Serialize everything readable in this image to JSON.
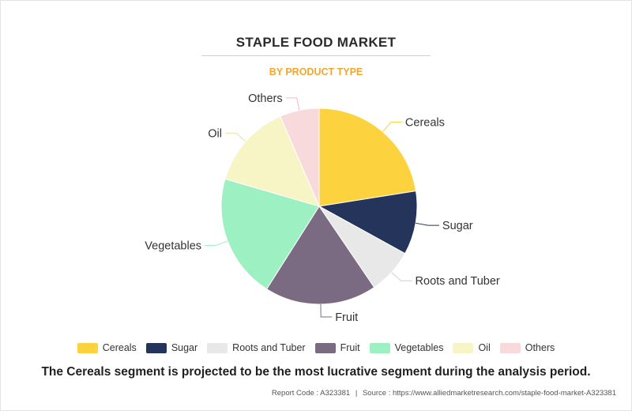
{
  "header": {
    "title": "STAPLE FOOD MARKET",
    "subtitle": "BY PRODUCT TYPE"
  },
  "caption": "The Cereals segment is projected to be the most lucrative segment during the analysis period.",
  "footer": {
    "report_code": "Report Code : A323381",
    "separator": "|",
    "source": "Source : https://www.alliedmarketresearch.com/staple-food-market-A323381"
  },
  "chart_data": {
    "type": "pie",
    "title": "STAPLE FOOD MARKET",
    "subtitle": "BY PRODUCT TYPE",
    "legend_position": "bottom",
    "slices": [
      {
        "label": "Cereals",
        "value": 22.5,
        "color": "#fdd23f"
      },
      {
        "label": "Sugar",
        "value": 10.5,
        "color": "#24345a"
      },
      {
        "label": "Roots and Tuber",
        "value": 7.5,
        "color": "#e8e8e8"
      },
      {
        "label": "Fruit",
        "value": 18.5,
        "color": "#7b6b82"
      },
      {
        "label": "Vegetables",
        "value": 20.5,
        "color": "#9df0c2"
      },
      {
        "label": "Oil",
        "value": 14.0,
        "color": "#f7f5c6"
      },
      {
        "label": "Others",
        "value": 6.5,
        "color": "#f8d9dc"
      }
    ]
  }
}
